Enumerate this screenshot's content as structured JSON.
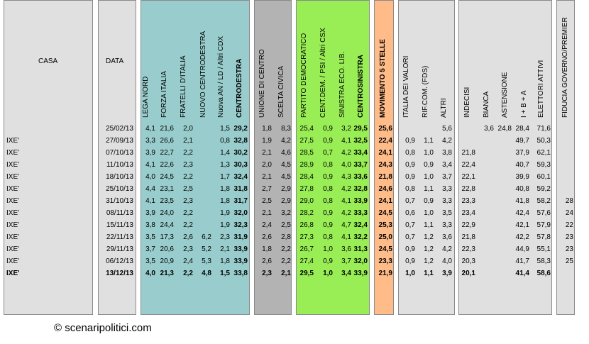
{
  "header": {
    "casa": "CASA",
    "data": "DATA",
    "columns": [
      "LEGA NORD",
      "FORZA ITALIA",
      "FRATELLI D'ITALIA",
      "NUOVO CENTRODESTRA",
      "Nuova AN / LD / Altri CDX",
      "CENTRODESTRA",
      "UNIONE DI CENTRO",
      "SCELTA CIVICA",
      "PARTITO DEMOCRATICO",
      "CENT.DEM. / PSI / Altri CSX",
      "SINISTRA ECO. LIB.",
      "CENTROSINISTRA",
      "MOVIMENTO 5 STELLE",
      "ITALIA DEI VALORI",
      "RIF.COM. (FDS)",
      "ALTRI",
      "INDECISI",
      "BIANCA",
      "ASTENSIONE",
      "I + B + A",
      "ELETTORI ATTIVI",
      "FIDUCIA GOVERNO/PREMIER"
    ]
  },
  "colors": {
    "cdx": "#99cccc",
    "centro": "#b3b3b3",
    "csx": "#99ee55",
    "m5s": "#ffbb88",
    "block": "#e0e0e0"
  },
  "rows": [
    {
      "casa": "",
      "data": "25/02/13",
      "v": [
        "4,1",
        "21,6",
        "2,0",
        "",
        "1,5",
        "29,2",
        "1,8",
        "8,3",
        "25,4",
        "0,9",
        "3,2",
        "29,5",
        "25,6",
        "",
        "",
        "5,6",
        "",
        "3,6",
        "24,8",
        "28,4",
        "71,6",
        ""
      ]
    },
    {
      "casa": "IXE'",
      "data": "27/09/13",
      "v": [
        "3,3",
        "26,6",
        "2,1",
        "",
        "0,8",
        "32,8",
        "1,9",
        "4,2",
        "27,5",
        "0,9",
        "4,1",
        "32,5",
        "22,4",
        "0,9",
        "1,1",
        "4,2",
        "",
        "",
        "",
        "49,7",
        "50,3",
        ""
      ]
    },
    {
      "casa": "IXE'",
      "data": "07/10/13",
      "v": [
        "3,9",
        "22,7",
        "2,2",
        "",
        "1,4",
        "30,2",
        "2,1",
        "4,6",
        "28,5",
        "0,7",
        "4,2",
        "33,4",
        "24,1",
        "0,8",
        "1,0",
        "3,8",
        "21,8",
        "",
        "",
        "37,9",
        "62,1",
        ""
      ]
    },
    {
      "casa": "IXE'",
      "data": "11/10/13",
      "v": [
        "4,1",
        "22,6",
        "2,3",
        "",
        "1,3",
        "30,3",
        "2,0",
        "4,5",
        "28,9",
        "0,8",
        "4,0",
        "33,7",
        "24,3",
        "0,9",
        "0,9",
        "3,4",
        "22,4",
        "",
        "",
        "40,7",
        "59,3",
        ""
      ]
    },
    {
      "casa": "IXE'",
      "data": "18/10/13",
      "v": [
        "4,0",
        "24,5",
        "2,2",
        "",
        "1,7",
        "32,4",
        "2,1",
        "4,5",
        "28,4",
        "0,9",
        "4,3",
        "33,6",
        "21,8",
        "0,9",
        "1,0",
        "3,7",
        "22,1",
        "",
        "",
        "39,9",
        "60,1",
        ""
      ]
    },
    {
      "casa": "IXE'",
      "data": "25/10/13",
      "v": [
        "4,4",
        "23,1",
        "2,5",
        "",
        "1,8",
        "31,8",
        "2,7",
        "2,9",
        "27,8",
        "0,8",
        "4,2",
        "32,8",
        "24,6",
        "0,8",
        "1,1",
        "3,3",
        "22,8",
        "",
        "",
        "40,8",
        "59,2",
        ""
      ]
    },
    {
      "casa": "IXE'",
      "data": "31/10/13",
      "v": [
        "4,1",
        "23,5",
        "2,3",
        "",
        "1,8",
        "31,7",
        "2,5",
        "2,9",
        "29,0",
        "0,8",
        "4,1",
        "33,9",
        "24,1",
        "0,7",
        "0,9",
        "3,3",
        "23,3",
        "",
        "",
        "41,8",
        "58,2",
        "28"
      ]
    },
    {
      "casa": "IXE'",
      "data": "08/11/13",
      "v": [
        "3,9",
        "24,0",
        "2,2",
        "",
        "1,9",
        "32,0",
        "2,1",
        "3,2",
        "28,2",
        "0,9",
        "4,2",
        "33,3",
        "24,5",
        "0,6",
        "1,0",
        "3,5",
        "23,4",
        "",
        "",
        "42,4",
        "57,6",
        "24"
      ]
    },
    {
      "casa": "IXE'",
      "data": "15/11/13",
      "v": [
        "3,8",
        "24,4",
        "2,2",
        "",
        "1,9",
        "32,3",
        "2,4",
        "2,5",
        "26,8",
        "0,9",
        "4,7",
        "32,4",
        "25,3",
        "0,7",
        "1,1",
        "3,3",
        "22,9",
        "",
        "",
        "42,1",
        "57,9",
        "22"
      ]
    },
    {
      "casa": "IXE'",
      "data": "22/11/13",
      "v": [
        "3,5",
        "17,3",
        "2,6",
        "6,2",
        "2,3",
        "31,9",
        "2,6",
        "2,8",
        "27,3",
        "0,8",
        "4,1",
        "32,2",
        "25,0",
        "0,7",
        "1,2",
        "3,6",
        "21,8",
        "",
        "",
        "42,2",
        "57,8",
        "23"
      ]
    },
    {
      "casa": "IXE'",
      "data": "29/11/13",
      "v": [
        "3,7",
        "20,6",
        "2,3",
        "5,2",
        "2,1",
        "33,9",
        "1,8",
        "2,2",
        "26,7",
        "1,0",
        "3,6",
        "31,3",
        "24,5",
        "0,9",
        "1,2",
        "4,2",
        "22,3",
        "",
        "",
        "44,9",
        "55,1",
        "23"
      ]
    },
    {
      "casa": "IXE'",
      "data": "06/12/13",
      "v": [
        "3,5",
        "20,9",
        "2,4",
        "5,3",
        "1,8",
        "33,9",
        "2,6",
        "2,2",
        "27,4",
        "0,9",
        "3,7",
        "32,0",
        "23,3",
        "0,9",
        "1,2",
        "4,0",
        "20,3",
        "",
        "",
        "41,7",
        "58,3",
        "25"
      ]
    },
    {
      "casa": "IXE'",
      "data": "13/12/13",
      "bold": true,
      "v": [
        "4,0",
        "21,3",
        "2,2",
        "4,8",
        "1,5",
        "33,8",
        "2,3",
        "2,1",
        "29,5",
        "1,0",
        "3,4",
        "33,9",
        "21,9",
        "1,0",
        "1,1",
        "3,9",
        "20,1",
        "",
        "",
        "41,4",
        "58,6",
        ""
      ]
    }
  ],
  "credit": "© scenaripolitici.com"
}
